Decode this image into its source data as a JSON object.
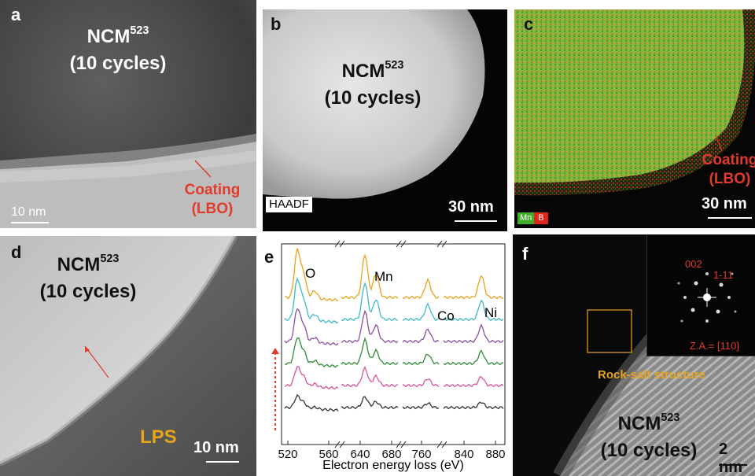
{
  "panels": {
    "a": {
      "label": "a",
      "title_main": "NCM",
      "title_sup": "523",
      "title_sub": "(10 cycles)",
      "coating_line1": "Coating",
      "coating_line2": "(LBO)",
      "scale": "10 nm"
    },
    "b": {
      "label": "b",
      "title_main": "NCM",
      "title_sup": "523",
      "title_sub": "(10 cycles)",
      "badge": "HAADF",
      "scale": "30 nm"
    },
    "c": {
      "label": "c",
      "coating_line1": "Coating",
      "coating_line2": "(LBO)",
      "scale": "30 nm",
      "legend": [
        {
          "element": "Mn",
          "color": "#3fae2a"
        },
        {
          "element": "B",
          "color": "#e0261b"
        }
      ]
    },
    "d": {
      "label": "d",
      "title_main": "NCM",
      "title_sup": "523",
      "title_sub": "(10 cycles)",
      "lps": "LPS",
      "scale": "10 nm"
    },
    "e": {
      "label": "e",
      "xlabel": "Electron energy loss (eV)",
      "ticks": [
        "520",
        "560",
        "640",
        "680",
        "760",
        "840",
        "880"
      ],
      "peaks": [
        "O",
        "Mn",
        "Co",
        "Ni"
      ]
    },
    "f": {
      "label": "f",
      "title_main": "NCM",
      "title_sup": "523",
      "title_sub": "(10 cycles)",
      "rock_salt": "Rock-salt structure",
      "fft_002": "002",
      "fft_111": "1-11",
      "zone_axis": "Z.A.= [110]",
      "scale": "2 nm"
    }
  },
  "colors": {
    "red": "#e23a2c",
    "gold": "#e8a51c",
    "spectra": [
      "#e8a21c",
      "#3fb9c7",
      "#8a4fa6",
      "#2e8b3a",
      "#d9539a",
      "#333333"
    ]
  }
}
